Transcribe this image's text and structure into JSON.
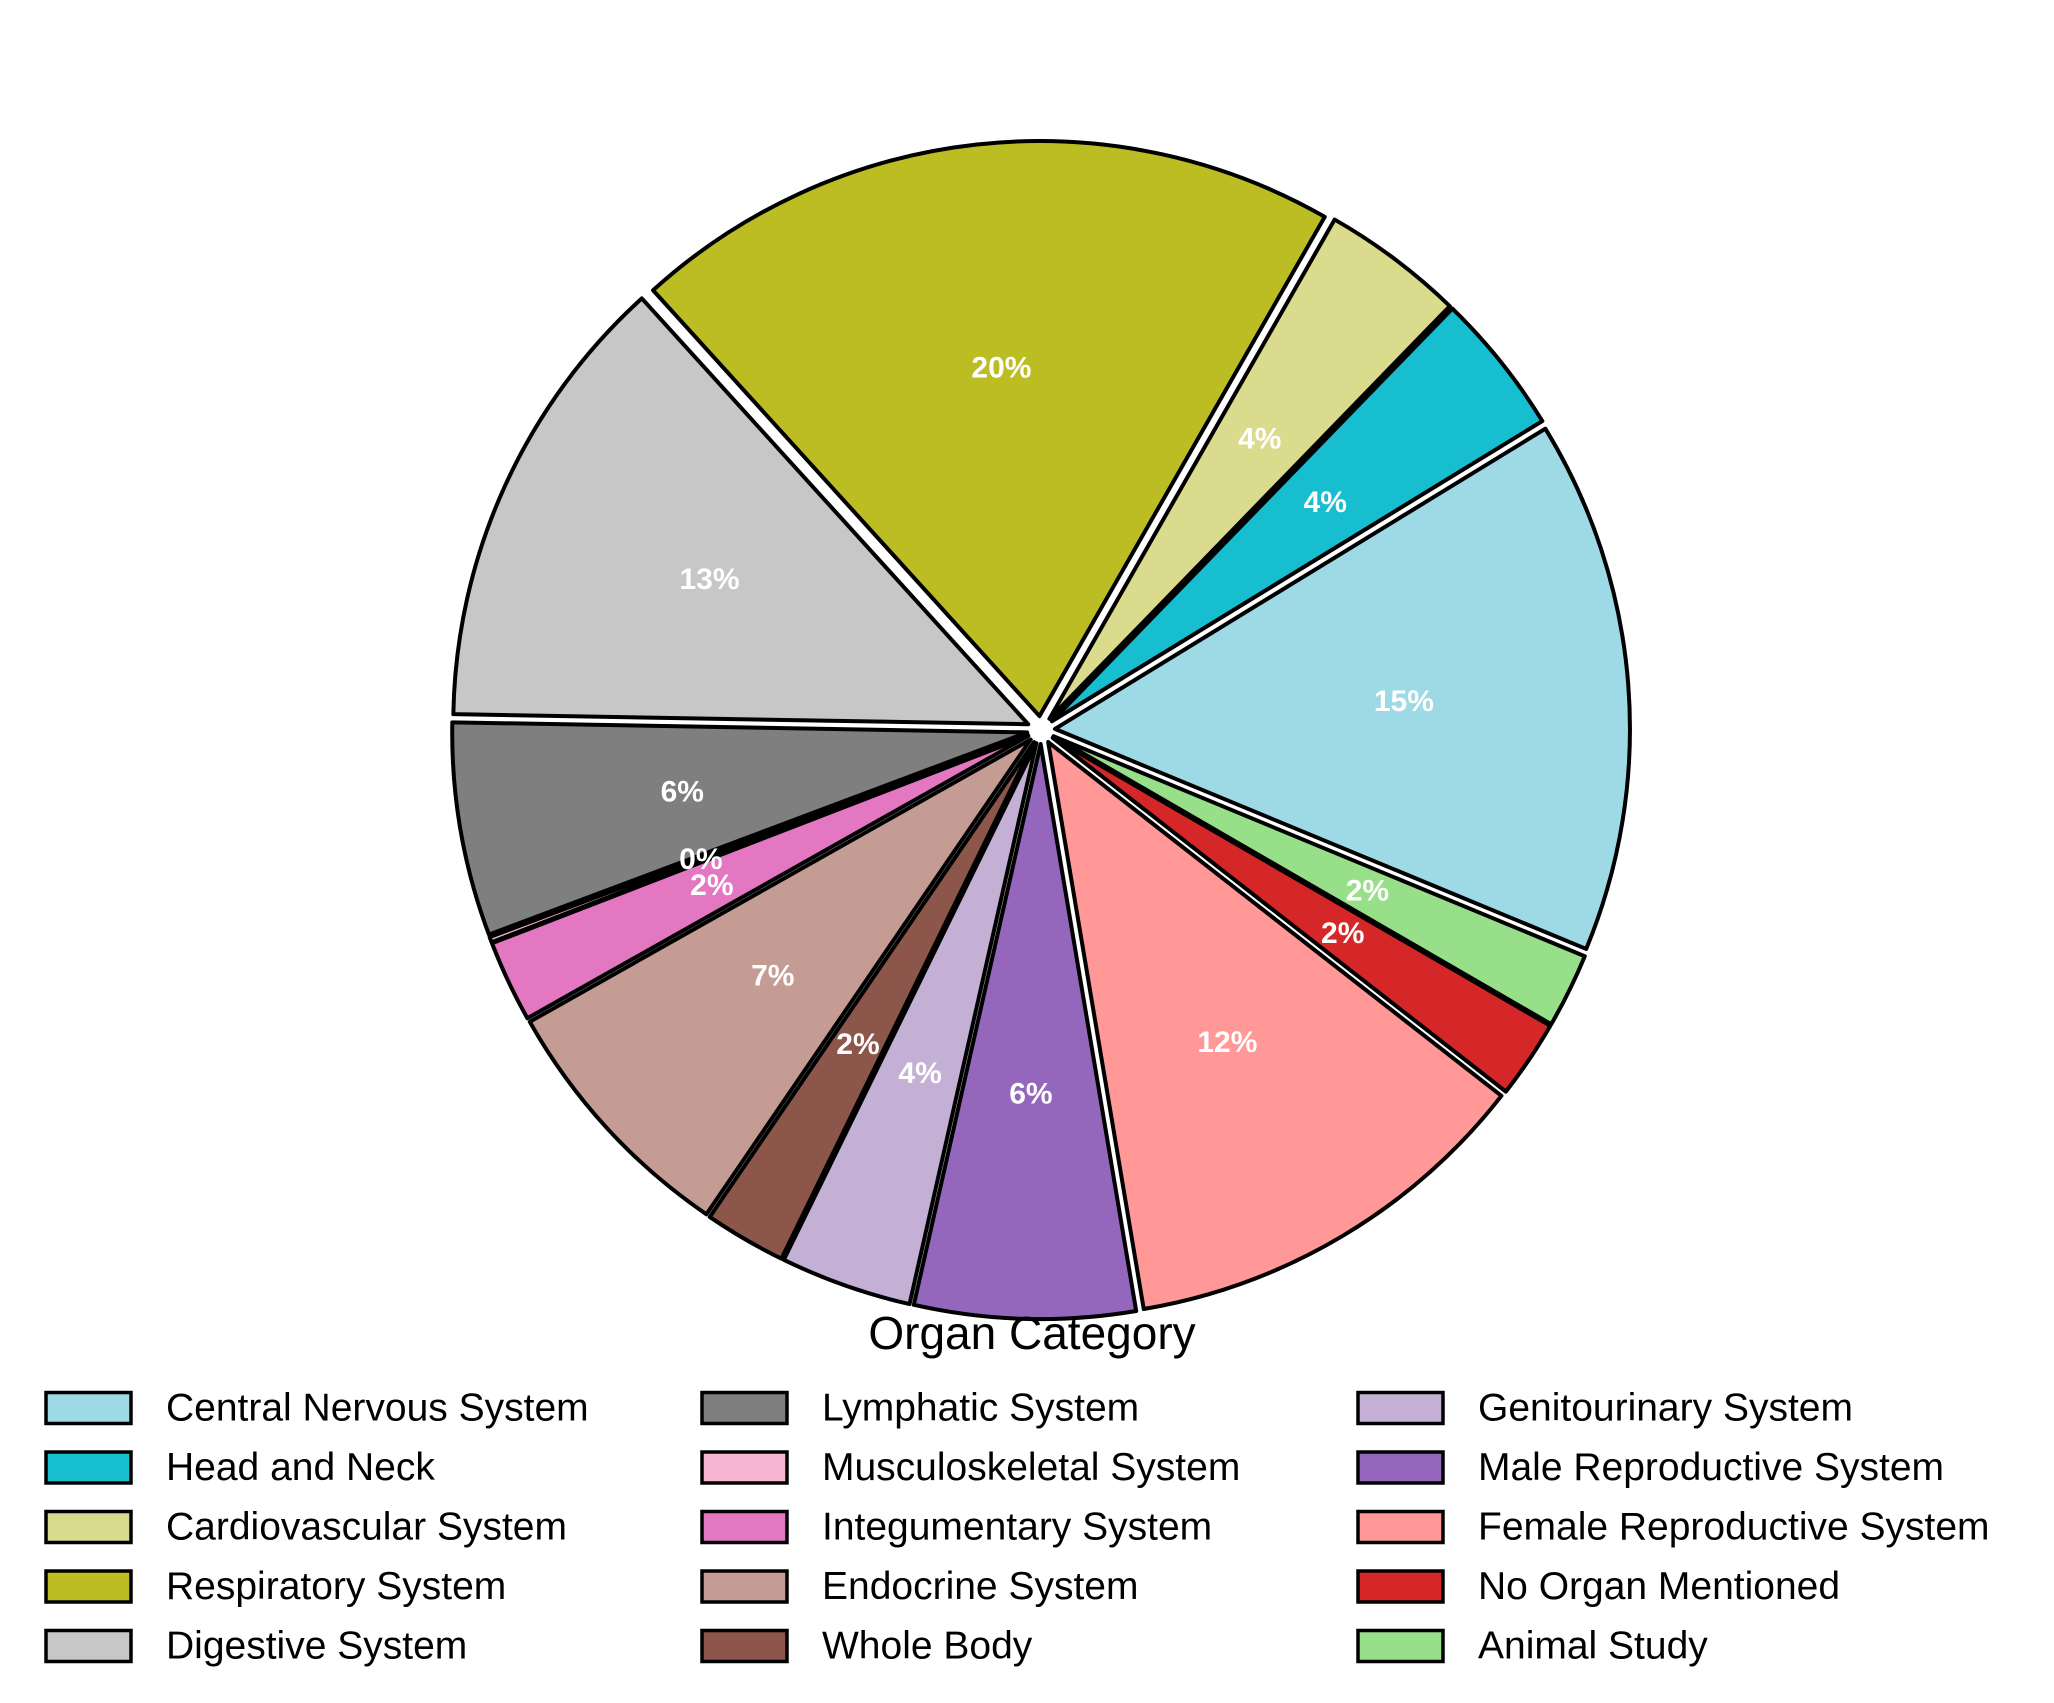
{
  "chart_data": {
    "type": "pie",
    "legend_title": "Organ Category",
    "legend_placement": "bottom",
    "slices": [
      {
        "label": "Central Nervous System",
        "value": 15,
        "pct_label": "15%",
        "color": "#9edae5"
      },
      {
        "label": "Head and Neck",
        "value": 4,
        "pct_label": "4%",
        "color": "#17becf"
      },
      {
        "label": "Cardiovascular System",
        "value": 4,
        "pct_label": "4%",
        "color": "#dbdb8d"
      },
      {
        "label": "Respiratory System",
        "value": 20,
        "pct_label": "20%",
        "color": "#bcbd22"
      },
      {
        "label": "Digestive System",
        "value": 13,
        "pct_label": "13%",
        "color": "#c7c7c7"
      },
      {
        "label": "Lymphatic System",
        "value": 6,
        "pct_label": "6%",
        "color": "#7f7f7f"
      },
      {
        "label": "Musculoskeletal System",
        "value": 0.15,
        "pct_label": "0%",
        "color": "#f7b6d2"
      },
      {
        "label": "Integumentary System",
        "value": 2.3,
        "pct_label": "2%",
        "color": "#e377c2"
      },
      {
        "label": "Endocrine System",
        "value": 7.3,
        "pct_label": "7%",
        "color": "#c49c94"
      },
      {
        "label": "Whole Body",
        "value": 2.3,
        "pct_label": "2%",
        "color": "#8c564b"
      },
      {
        "label": "Genitourinary System",
        "value": 3.7,
        "pct_label": "4%",
        "color": "#c5b0d5"
      },
      {
        "label": "Male Reproductive System",
        "value": 6.2,
        "pct_label": "6%",
        "color": "#9467bd"
      },
      {
        "label": "Female Reproductive System",
        "value": 11.8,
        "pct_label": "12%",
        "color": "#ff9896"
      },
      {
        "label": "No Organ Mentioned",
        "value": 2.2,
        "pct_label": "2%",
        "color": "#d62728"
      },
      {
        "label": "Animal Study",
        "value": 2.1,
        "pct_label": "2%",
        "color": "#98df8a"
      }
    ]
  }
}
